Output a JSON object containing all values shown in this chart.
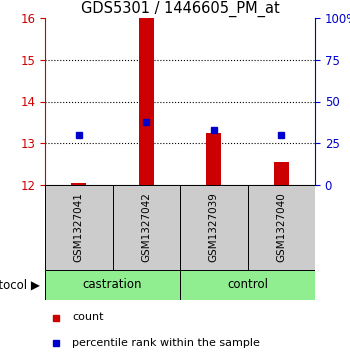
{
  "title": "GDS5301 / 1446605_PM_at",
  "samples": [
    "GSM1327041",
    "GSM1327042",
    "GSM1327039",
    "GSM1327040"
  ],
  "red_bar_values": [
    12.05,
    16.0,
    13.25,
    12.55
  ],
  "blue_marker_values": [
    13.2,
    13.5,
    13.32,
    13.2
  ],
  "red_bar_bottom": 12.0,
  "ylim_left": [
    12,
    16
  ],
  "ylim_right": [
    0,
    100
  ],
  "yticks_left": [
    12,
    13,
    14,
    15,
    16
  ],
  "yticks_right": [
    0,
    25,
    50,
    75,
    100
  ],
  "ytick_labels_right": [
    "0",
    "25",
    "50",
    "75",
    "100%"
  ],
  "left_axis_color": "#cc0000",
  "right_axis_color": "#0000cc",
  "bar_color": "#cc0000",
  "marker_color": "#0000cc",
  "sample_box_color": "#cccccc",
  "group_color": "#90EE90",
  "legend_count_color": "#cc0000",
  "legend_pct_color": "#0000cc",
  "bar_width": 0.22
}
